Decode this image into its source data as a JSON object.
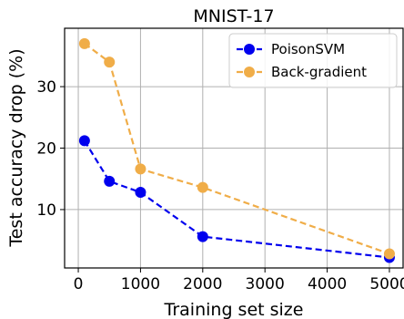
{
  "chart_data": {
    "type": "line",
    "title": "MNIST-17",
    "xlabel": "Training set size",
    "ylabel": "Test accuracy drop (%)",
    "xlim": [
      -220,
      5220
    ],
    "ylim": [
      0.5,
      39.5
    ],
    "xticks": [
      0,
      1000,
      2000,
      3000,
      4000,
      5000
    ],
    "yticks": [
      10,
      20,
      30
    ],
    "grid": true,
    "legend_position": "top-right",
    "series": [
      {
        "name": "PoisonSVM",
        "color": "#0000ee",
        "style": "dashed",
        "x": [
          100,
          500,
          1000,
          2000,
          5000
        ],
        "y": [
          21.2,
          14.6,
          12.8,
          5.6,
          2.2
        ]
      },
      {
        "name": "Back-gradient",
        "color": "#f0ad48",
        "style": "dashed",
        "x": [
          100,
          500,
          1000,
          2000,
          5000
        ],
        "y": [
          37.0,
          34.0,
          16.6,
          13.6,
          2.8
        ]
      }
    ]
  }
}
